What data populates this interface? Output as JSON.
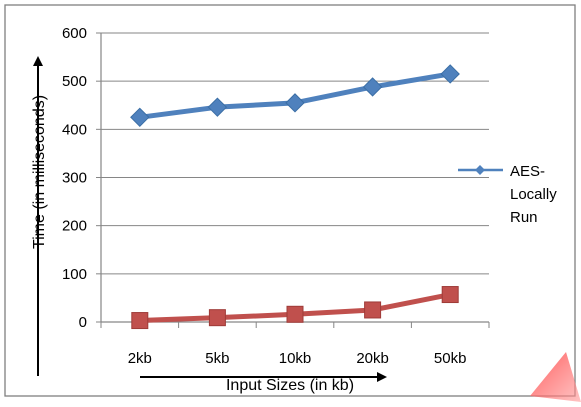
{
  "chart_data": {
    "type": "line",
    "categories": [
      "2kb",
      "5kb",
      "10kb",
      "20kb",
      "50kb"
    ],
    "series": [
      {
        "name": "AES-Locally Run",
        "legend_lines": [
          "AES-",
          "Locally",
          "Run"
        ],
        "values": [
          425,
          446,
          455,
          488,
          515
        ],
        "color": "#4F81BD",
        "marker": "diamond"
      },
      {
        "name": "",
        "values": [
          3,
          9,
          16,
          25,
          57
        ],
        "color": "#C0504D",
        "marker": "square"
      }
    ],
    "ylabel": "Time (in milliseconds)",
    "xlabel": "Input Sizes (in kb)",
    "ylim": [
      0,
      600
    ],
    "yticks": [
      0,
      100,
      200,
      300,
      400,
      500,
      600
    ],
    "grid": true,
    "legend": "right"
  }
}
